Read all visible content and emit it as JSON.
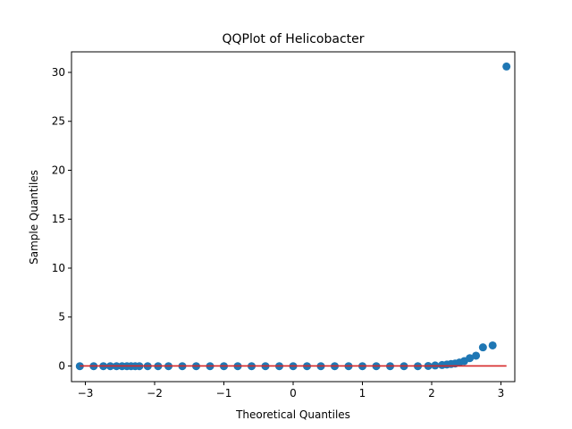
{
  "chart_data": {
    "type": "scatter",
    "title": "QQPlot of Helicobacter",
    "xlabel": "Theoretical Quantiles",
    "ylabel": "Sample Quantiles",
    "xlim": [
      -3.2,
      3.2
    ],
    "ylim": [
      -1.6,
      32.1
    ],
    "xticks": [
      -3,
      -2,
      -1,
      0,
      1,
      2,
      3
    ],
    "xtick_labels": [
      "−3",
      "−2",
      "−1",
      "0",
      "1",
      "2",
      "3"
    ],
    "yticks": [
      0,
      5,
      10,
      15,
      20,
      25,
      30
    ],
    "ytick_labels": [
      "0",
      "5",
      "10",
      "15",
      "20",
      "25",
      "30"
    ],
    "grid": false,
    "legend": "none",
    "point_color": "#1f77b4",
    "line_color": "#d62728",
    "reference_line": {
      "x": [
        -3.08,
        3.08
      ],
      "y": [
        0.0,
        0.0
      ]
    },
    "points": {
      "x": [
        -3.08,
        -2.88,
        -2.74,
        -2.64,
        -2.55,
        -2.47,
        -2.4,
        -2.34,
        -2.28,
        -2.22,
        -2.1,
        -1.95,
        -1.8,
        -1.6,
        -1.4,
        -1.2,
        -1.0,
        -0.8,
        -0.6,
        -0.4,
        -0.2,
        0.0,
        0.2,
        0.4,
        0.6,
        0.8,
        1.0,
        1.2,
        1.4,
        1.6,
        1.8,
        1.95,
        2.05,
        2.15,
        2.22,
        2.28,
        2.34,
        2.4,
        2.47,
        2.55,
        2.64,
        2.74,
        2.88,
        3.08
      ],
      "y": [
        -0.02,
        -0.02,
        -0.02,
        -0.02,
        -0.02,
        -0.02,
        -0.02,
        -0.02,
        -0.02,
        -0.02,
        -0.02,
        -0.02,
        -0.02,
        -0.02,
        -0.02,
        -0.02,
        -0.02,
        -0.02,
        -0.02,
        -0.02,
        -0.02,
        -0.02,
        -0.02,
        -0.02,
        -0.02,
        -0.02,
        -0.02,
        -0.02,
        -0.02,
        -0.02,
        -0.02,
        0.0,
        0.05,
        0.1,
        0.15,
        0.2,
        0.25,
        0.35,
        0.5,
        0.8,
        1.05,
        1.9,
        2.1,
        30.6
      ]
    }
  }
}
